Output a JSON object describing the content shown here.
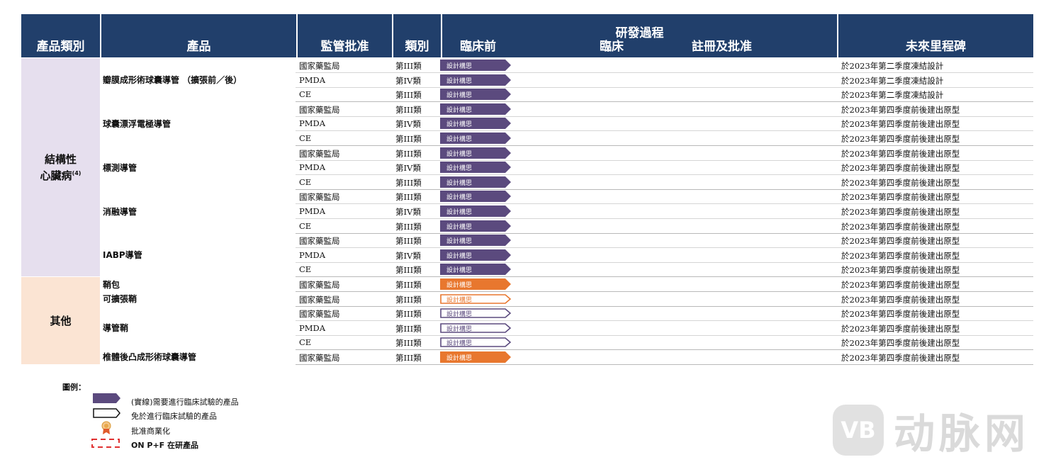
{
  "header": {
    "category": "產品類別",
    "product": "產品",
    "regulatory": "監管批准",
    "class": "類別",
    "pipeline_title": "研發過程",
    "preclinical": "臨床前",
    "clinical": "臨床",
    "registration": "註冊及批准",
    "milestone": "未來里程碑"
  },
  "categories": {
    "structural_line1": "結構性",
    "structural_line2": "心臟病",
    "structural_note": "(4)",
    "others": "其他"
  },
  "products": [
    "瓣膜成形術球囊導管 （擴張前／後）",
    "球囊漂浮電極導管",
    "標測導管",
    "消融導管",
    "IABP導管",
    "鞘包",
    "可擴張鞘",
    "導管鞘",
    "椎體後凸成形術球囊導管"
  ],
  "rows": [
    {
      "reg": "國家藥監局",
      "cls": "第III類",
      "stage": "設計構思",
      "style": "solid-purple",
      "ms": "於2023年第二季度凍結設計"
    },
    {
      "reg": "PMDA",
      "cls": "第IV類",
      "stage": "設計構思",
      "style": "solid-purple",
      "ms": "於2023年第二季度凍結設計"
    },
    {
      "reg": "CE",
      "cls": "第III類",
      "stage": "設計構思",
      "style": "solid-purple",
      "ms": "於2023年第二季度凍結設計"
    },
    {
      "reg": "國家藥監局",
      "cls": "第III類",
      "stage": "設計構思",
      "style": "solid-purple",
      "ms": "於2023年第四季度前後建出原型"
    },
    {
      "reg": "PMDA",
      "cls": "第IV類",
      "stage": "設計構思",
      "style": "solid-purple",
      "ms": "於2023年第四季度前後建出原型"
    },
    {
      "reg": "CE",
      "cls": "第III類",
      "stage": "設計構思",
      "style": "solid-purple",
      "ms": "於2023年第四季度前後建出原型"
    },
    {
      "reg": "國家藥監局",
      "cls": "第III類",
      "stage": "設計構思",
      "style": "solid-purple",
      "ms": "於2023年第四季度前後建出原型"
    },
    {
      "reg": "PMDA",
      "cls": "第IV類",
      "stage": "設計構思",
      "style": "solid-purple",
      "ms": "於2023年第四季度前後建出原型"
    },
    {
      "reg": "CE",
      "cls": "第III類",
      "stage": "設計構思",
      "style": "solid-purple",
      "ms": "於2023年第四季度前後建出原型"
    },
    {
      "reg": "國家藥監局",
      "cls": "第III類",
      "stage": "設計構思",
      "style": "solid-purple",
      "ms": "於2023年第四季度前後建出原型"
    },
    {
      "reg": "PMDA",
      "cls": "第IV類",
      "stage": "設計構思",
      "style": "solid-purple",
      "ms": "於2023年第四季度前後建出原型"
    },
    {
      "reg": "CE",
      "cls": "第III類",
      "stage": "設計構思",
      "style": "solid-purple",
      "ms": "於2023年第四季度前後建出原型"
    },
    {
      "reg": "國家藥監局",
      "cls": "第III類",
      "stage": "設計構思",
      "style": "solid-purple",
      "ms": "於2023年第四季度前後建出原型"
    },
    {
      "reg": "PMDA",
      "cls": "第IV類",
      "stage": "設計構思",
      "style": "solid-purple",
      "ms": "於2023年第四季度前後建出原型"
    },
    {
      "reg": "CE",
      "cls": "第III類",
      "stage": "設計構思",
      "style": "solid-purple",
      "ms": "於2023年第四季度前後建出原型"
    },
    {
      "reg": "國家藥監局",
      "cls": "第III類",
      "stage": "設計構思",
      "style": "solid-orange",
      "ms": "於2023年第四季度前後建出原型"
    },
    {
      "reg": "國家藥監局",
      "cls": "第III類",
      "stage": "設計構思",
      "style": "outline-orange",
      "ms": "於2023年第四季度前後建出原型"
    },
    {
      "reg": "國家藥監局",
      "cls": "第III類",
      "stage": "設計構思",
      "style": "outline-purple",
      "ms": "於2023年第四季度前後建出原型"
    },
    {
      "reg": "PMDA",
      "cls": "第III類",
      "stage": "設計構思",
      "style": "outline-purple",
      "ms": "於2023年第四季度前後建出原型"
    },
    {
      "reg": "CE",
      "cls": "第III類",
      "stage": "設計構思",
      "style": "outline-purple",
      "ms": "於2023年第四季度前後建出原型"
    },
    {
      "reg": "國家藥監局",
      "cls": "第III類",
      "stage": "設計構思",
      "style": "solid-orange",
      "ms": "於2023年第四季度前後建出原型"
    }
  ],
  "legend": {
    "title": "圖例：",
    "solid": "(實線)需要進行臨床試驗的產品",
    "outline": "免於進行臨床試驗的產品",
    "approved": "批准商業化",
    "onpf": "ON P+F 在研產品"
  },
  "watermark": {
    "text": "动脉网",
    "logo": "VB"
  },
  "colors": {
    "header": "#213f6b",
    "structural_bg": "#e6dfee",
    "others_bg": "#fbe4d3",
    "purple": "#5b4a7e",
    "orange": "#e8772e"
  }
}
